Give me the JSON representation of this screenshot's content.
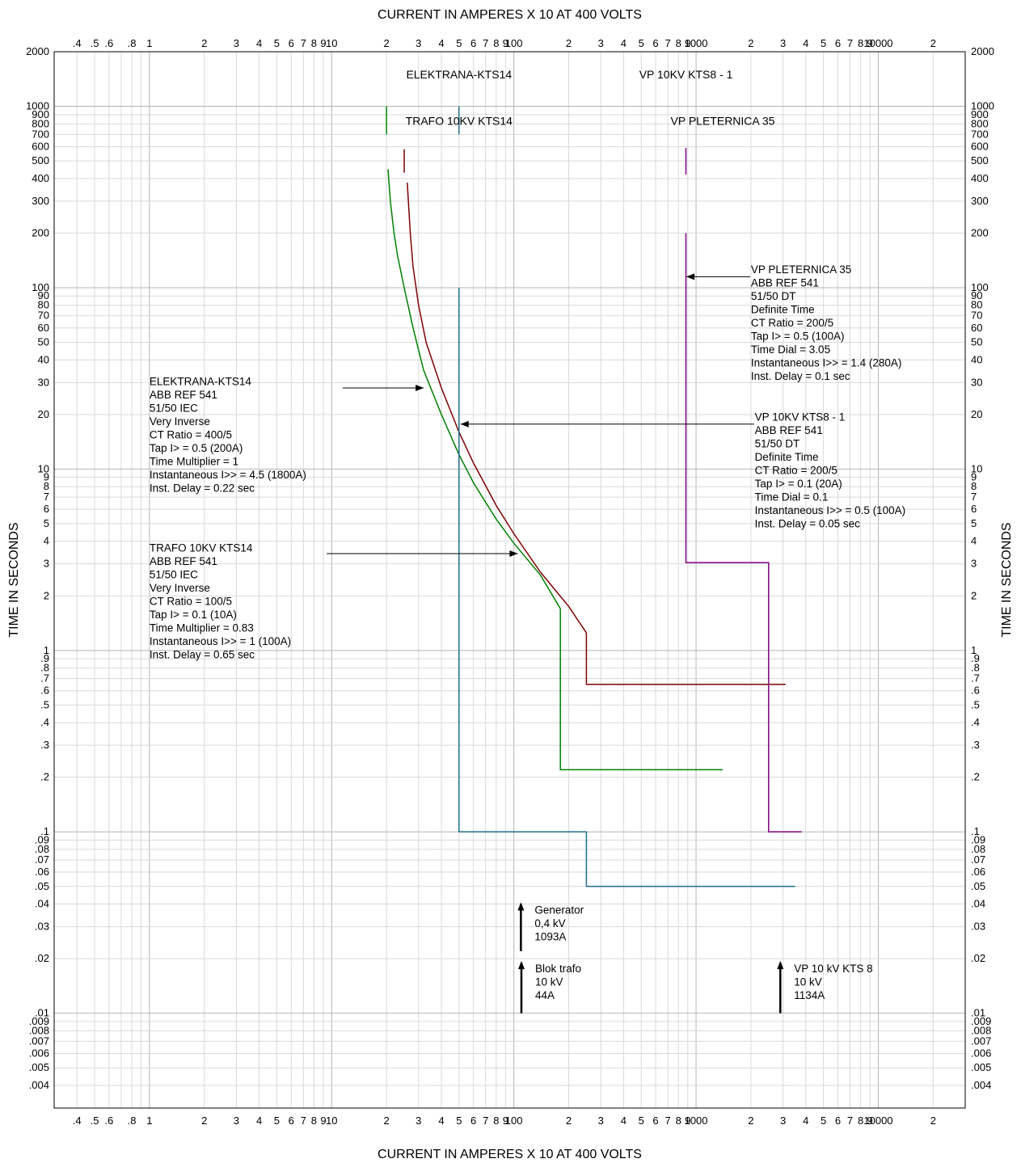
{
  "colors": {
    "elektrana": "#008000",
    "trafo": "#800000",
    "vp10kv": "#1f6e8c",
    "vppleternica": "#800080",
    "grid_major": "#b4b4b4",
    "grid_minor": "#d9d9d9",
    "text": "#000000"
  },
  "chart_data": {
    "type": "line",
    "log_x": true,
    "log_y": true,
    "xlabel": "CURRENT IN AMPERES X 10 AT 400 VOLTS",
    "ylabel": "TIME IN SECONDS",
    "xlim": [
      0.3,
      30000
    ],
    "ylim": [
      0.003,
      2000
    ],
    "grid": true,
    "x_ticks": [
      {
        "v": 0.4,
        "t": ".4"
      },
      {
        "v": 0.5,
        "t": ".5"
      },
      {
        "v": 0.6,
        "t": ".6"
      },
      {
        "v": 0.8,
        "t": ".8"
      },
      {
        "v": 1,
        "t": "1"
      },
      {
        "v": 2,
        "t": "2"
      },
      {
        "v": 3,
        "t": "3"
      },
      {
        "v": 4,
        "t": "4"
      },
      {
        "v": 5,
        "t": "5"
      },
      {
        "v": 6,
        "t": "6"
      },
      {
        "v": 7,
        "t": "7"
      },
      {
        "v": 8,
        "t": "8"
      },
      {
        "v": 9,
        "t": "9"
      },
      {
        "v": 10,
        "t": "10"
      },
      {
        "v": 20,
        "t": "2"
      },
      {
        "v": 30,
        "t": "3"
      },
      {
        "v": 40,
        "t": "4"
      },
      {
        "v": 50,
        "t": "5"
      },
      {
        "v": 60,
        "t": "6"
      },
      {
        "v": 70,
        "t": "7"
      },
      {
        "v": 80,
        "t": "8"
      },
      {
        "v": 90,
        "t": "9"
      },
      {
        "v": 100,
        "t": "100"
      },
      {
        "v": 200,
        "t": "2"
      },
      {
        "v": 300,
        "t": "3"
      },
      {
        "v": 400,
        "t": "4"
      },
      {
        "v": 500,
        "t": "5"
      },
      {
        "v": 600,
        "t": "6"
      },
      {
        "v": 700,
        "t": "7"
      },
      {
        "v": 800,
        "t": "8"
      },
      {
        "v": 900,
        "t": "9"
      },
      {
        "v": 1000,
        "t": "1000"
      },
      {
        "v": 2000,
        "t": "2"
      },
      {
        "v": 3000,
        "t": "3"
      },
      {
        "v": 4000,
        "t": "4"
      },
      {
        "v": 5000,
        "t": "5"
      },
      {
        "v": 6000,
        "t": "6"
      },
      {
        "v": 7000,
        "t": "7"
      },
      {
        "v": 8000,
        "t": "8"
      },
      {
        "v": 9000,
        "t": "9"
      },
      {
        "v": 10000,
        "t": "10000"
      },
      {
        "v": 20000,
        "t": "2"
      }
    ],
    "y_ticks": [
      {
        "v": 2000,
        "t": "2000"
      },
      {
        "v": 1000,
        "t": "1000"
      },
      {
        "v": 900,
        "t": "900"
      },
      {
        "v": 800,
        "t": "800"
      },
      {
        "v": 700,
        "t": "700"
      },
      {
        "v": 600,
        "t": "600"
      },
      {
        "v": 500,
        "t": "500"
      },
      {
        "v": 400,
        "t": "400"
      },
      {
        "v": 300,
        "t": "300"
      },
      {
        "v": 200,
        "t": "200"
      },
      {
        "v": 100,
        "t": "100"
      },
      {
        "v": 90,
        "t": "90"
      },
      {
        "v": 80,
        "t": "80"
      },
      {
        "v": 70,
        "t": "70"
      },
      {
        "v": 60,
        "t": "60"
      },
      {
        "v": 50,
        "t": "50"
      },
      {
        "v": 40,
        "t": "40"
      },
      {
        "v": 30,
        "t": "30"
      },
      {
        "v": 20,
        "t": "20"
      },
      {
        "v": 10,
        "t": "10"
      },
      {
        "v": 9,
        "t": "9"
      },
      {
        "v": 8,
        "t": "8"
      },
      {
        "v": 7,
        "t": "7"
      },
      {
        "v": 6,
        "t": "6"
      },
      {
        "v": 5,
        "t": "5"
      },
      {
        "v": 4,
        "t": "4"
      },
      {
        "v": 3,
        "t": "3"
      },
      {
        "v": 2,
        "t": "2"
      },
      {
        "v": 1,
        "t": "1"
      },
      {
        "v": 0.9,
        "t": ".9"
      },
      {
        "v": 0.8,
        "t": ".8"
      },
      {
        "v": 0.7,
        "t": ".7"
      },
      {
        "v": 0.6,
        "t": ".6"
      },
      {
        "v": 0.5,
        "t": ".5"
      },
      {
        "v": 0.4,
        "t": ".4"
      },
      {
        "v": 0.3,
        "t": ".3"
      },
      {
        "v": 0.2,
        "t": ".2"
      },
      {
        "v": 0.1,
        "t": ".1"
      },
      {
        "v": 0.09,
        "t": ".09"
      },
      {
        "v": 0.08,
        "t": ".08"
      },
      {
        "v": 0.07,
        "t": ".07"
      },
      {
        "v": 0.06,
        "t": ".06"
      },
      {
        "v": 0.05,
        "t": ".05"
      },
      {
        "v": 0.04,
        "t": ".04"
      },
      {
        "v": 0.03,
        "t": ".03"
      },
      {
        "v": 0.02,
        "t": ".02"
      },
      {
        "v": 0.01,
        "t": ".01"
      },
      {
        "v": 0.009,
        "t": ".009"
      },
      {
        "v": 0.008,
        "t": ".008"
      },
      {
        "v": 0.007,
        "t": ".007"
      },
      {
        "v": 0.006,
        "t": ".006"
      },
      {
        "v": 0.005,
        "t": ".005"
      },
      {
        "v": 0.004,
        "t": ".004"
      }
    ],
    "series": [
      {
        "key": "elektrana",
        "name": "ELEKTRANA-KTS14",
        "color_key": "elektrana",
        "segments": [
          [
            [
              20,
              1000
            ],
            [
              20,
              700
            ]
          ],
          [
            [
              20.4,
              450
            ],
            [
              21,
              300
            ],
            [
              22,
              200
            ],
            [
              23,
              150
            ],
            [
              25,
              100
            ],
            [
              28,
              60
            ],
            [
              32,
              35
            ],
            [
              40,
              20
            ],
            [
              50,
              12
            ],
            [
              60,
              8.4
            ],
            [
              80,
              5.3
            ],
            [
              100,
              3.9
            ],
            [
              140,
              2.6
            ],
            [
              180,
              1.7
            ]
          ],
          [
            [
              180,
              1.7
            ],
            [
              180,
              0.22
            ],
            [
              1400,
              0.22
            ]
          ]
        ]
      },
      {
        "key": "trafo",
        "name": "TRAFO 10KV KTS14",
        "color_key": "trafo",
        "segments": [
          [
            [
              25,
              580
            ],
            [
              25,
              430
            ]
          ],
          [
            [
              26,
              380
            ],
            [
              27,
              200
            ],
            [
              28,
              130
            ],
            [
              30,
              80
            ],
            [
              33,
              50
            ],
            [
              40,
              28
            ],
            [
              50,
              16
            ],
            [
              60,
              10.8
            ],
            [
              80,
              6.3
            ],
            [
              100,
              4.4
            ],
            [
              140,
              2.7
            ],
            [
              200,
              1.75
            ],
            [
              250,
              1.25
            ]
          ],
          [
            [
              250,
              1.25
            ],
            [
              250,
              0.65
            ],
            [
              3100,
              0.65
            ]
          ]
        ]
      },
      {
        "key": "vp10kv",
        "name": "VP 10KV KTS8 - 1",
        "color_key": "vp10kv",
        "segments": [
          [
            [
              50,
              1000
            ],
            [
              50,
              700
            ]
          ],
          [
            [
              50,
              100
            ],
            [
              50,
              0.1
            ],
            [
              250,
              0.1
            ],
            [
              250,
              0.05
            ],
            [
              3500,
              0.05
            ]
          ]
        ]
      },
      {
        "key": "vppleternica",
        "name": "VP PLETERNICA 35",
        "color_key": "vppleternica",
        "segments": [
          [
            [
              880,
              590
            ],
            [
              880,
              420
            ]
          ],
          [
            [
              880,
              200
            ],
            [
              880,
              3.05
            ],
            [
              2500,
              3.05
            ],
            [
              2500,
              0.1
            ],
            [
              3800,
              0.1
            ]
          ]
        ]
      }
    ],
    "series_labels": [
      {
        "key": "elektrana",
        "text": "ELEKTRANA-KTS14",
        "x": 50,
        "y": 1500
      },
      {
        "key": "vp10kv",
        "text": "VP 10KV KTS8 - 1",
        "x": 880,
        "y": 1500
      },
      {
        "key": "trafo",
        "text": "TRAFO 10KV KTS14",
        "x": 50,
        "y": 830
      },
      {
        "key": "vppleternica",
        "text": "VP PLETERNICA 35",
        "x": 1400,
        "y": 830
      }
    ],
    "annotations": [
      {
        "key": "elektrana",
        "lines": [
          "ELEKTRANA-KTS14",
          "ABB REF 541",
          "51/50 IEC",
          "Very Inverse",
          "CT Ratio = 400/5",
          "Tap  I> = 0.5 (200A)",
          "Time Multiplier = 1",
          "Instantaneous I>> = 4.5 (1800A)",
          "Inst. Delay = 0.22 sec"
        ],
        "text_at": [
          1.0,
          29
        ],
        "arrow_from": [
          11.5,
          28
        ],
        "arrow_to": [
          32,
          28
        ]
      },
      {
        "key": "trafo",
        "lines": [
          "TRAFO 10KV KTS14",
          "ABB REF 541",
          "51/50 IEC",
          "Very Inverse",
          "CT Ratio = 100/5",
          "Tap  I> = 0.1 (10A)",
          "Time Multiplier = 0.83",
          "Instantaneous I>> = 1 (100A)",
          "Inst. Delay = 0.65 sec"
        ],
        "text_at": [
          1.0,
          3.5
        ],
        "arrow_from": [
          9.4,
          3.42
        ],
        "arrow_to": [
          105,
          3.42
        ]
      },
      {
        "key": "vppleternica",
        "lines": [
          "VP PLETERNICA 35",
          "ABB REF 541",
          "51/50 DT",
          "Definite Time",
          "CT Ratio = 200/5",
          "Tap  I> = 0.5 (100A)",
          "Time Dial = 3.05",
          "Instantaneous I>> = 1.4 (280A)",
          "Inst. Delay = 0.1 sec"
        ],
        "text_at": [
          2000,
          120
        ],
        "arrow_from": [
          1980,
          115
        ],
        "arrow_to": [
          885,
          115
        ]
      },
      {
        "key": "vp10kv",
        "lines": [
          "VP 10KV KTS8 - 1",
          "ABB REF 541",
          "51/50 DT",
          "Definite Time",
          "CT Ratio = 200/5",
          "Tap  I> = 0.1 (20A)",
          "Time Dial = 0.1",
          "Instantaneous I>> = 0.5 (100A)",
          "Inst. Delay = 0.05 sec"
        ],
        "text_at": [
          2100,
          18.5
        ],
        "arrow_from": [
          2080,
          17.7
        ],
        "arrow_to": [
          51,
          17.7
        ]
      }
    ],
    "markers": [
      {
        "name": "generator",
        "lines": [
          "Generator",
          "0,4 kV",
          "1093A"
        ],
        "x": 109.3,
        "y_bottom": 0.022,
        "y_top": 0.04
      },
      {
        "name": "blok-trafo",
        "lines": [
          "Blok trafo",
          "10 kV",
          "44A"
        ],
        "x": 110,
        "y_bottom": 0.01,
        "y_top": 0.019
      },
      {
        "name": "vp-10kv-kts8",
        "lines": [
          "VP 10 kV KTS 8",
          "10 kV",
          "1134A"
        ],
        "x": 2900,
        "y_bottom": 0.01,
        "y_top": 0.019
      }
    ]
  }
}
